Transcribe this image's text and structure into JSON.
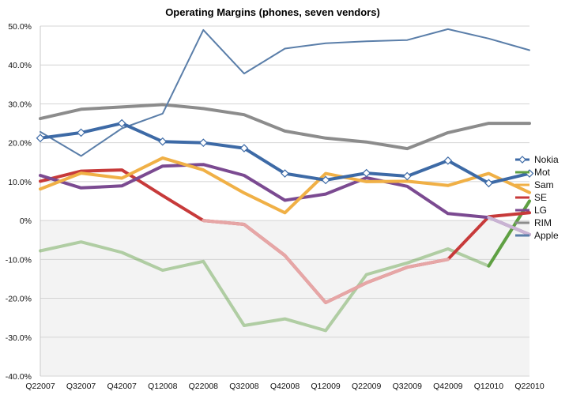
{
  "chart_data": {
    "type": "line",
    "title": "Operating Margins (phones, seven vendors)",
    "xlabel": "",
    "ylabel": "",
    "categories": [
      "Q22007",
      "Q32007",
      "Q42007",
      "Q12008",
      "Q22008",
      "Q32008",
      "Q42008",
      "Q12009",
      "Q22009",
      "Q32009",
      "Q42009",
      "Q12010",
      "Q22010"
    ],
    "ylim": [
      -40,
      50
    ],
    "yticks": [
      -40,
      -30,
      -20,
      -10,
      0,
      10,
      20,
      30,
      40,
      50
    ],
    "ytick_labels": [
      "-40.0%",
      "-30.0%",
      "-20.0%",
      "-10.0%",
      "0%",
      "10.0%",
      "20.0%",
      "30.0%",
      "40.0%",
      "50.0%"
    ],
    "grid": true,
    "negative_region_shaded": true,
    "legend_position": "right",
    "series": [
      {
        "name": "Nokia",
        "color": "#3d6aa6",
        "marker": "diamond",
        "values": [
          21.2,
          22.6,
          25.0,
          20.3,
          20.0,
          18.6,
          12.1,
          10.4,
          12.2,
          11.4,
          15.4,
          9.6,
          12.1
        ]
      },
      {
        "name": "Mot",
        "color": "#5fa043",
        "values": [
          -7.8,
          -5.5,
          -8.2,
          -12.8,
          -10.5,
          -27.0,
          -25.3,
          -28.3,
          -13.9,
          -10.9,
          -7.3,
          -11.7,
          5.0
        ]
      },
      {
        "name": "Sam",
        "color": "#f0b046",
        "values": [
          8.1,
          12.2,
          10.9,
          16.1,
          13.0,
          7.1,
          2.0,
          12.1,
          10.0,
          10.1,
          9.0,
          12.1,
          7.2
        ]
      },
      {
        "name": "SE",
        "color": "#c73a3a",
        "values": [
          10.1,
          12.7,
          13.0,
          6.4,
          0.0,
          -1.0,
          -9.0,
          -21.1,
          -16.0,
          -12.0,
          -10.0,
          1.0,
          2.0
        ]
      },
      {
        "name": "LG",
        "color": "#7b4a91",
        "values": [
          11.6,
          8.4,
          8.9,
          14.0,
          14.4,
          11.6,
          5.2,
          6.8,
          11.0,
          8.8,
          1.8,
          0.8,
          -3.6
        ]
      },
      {
        "name": "RIM",
        "color": "#8c8c8c",
        "values": [
          26.2,
          28.6,
          29.2,
          29.8,
          28.8,
          27.2,
          23.0,
          21.2,
          20.2,
          18.5,
          22.6,
          25.0,
          25.0
        ]
      },
      {
        "name": "Apple",
        "color": "#5a7ea9",
        "values": [
          22.8,
          16.6,
          23.7,
          27.5,
          49.0,
          37.8,
          44.2,
          45.6,
          46.1,
          46.4,
          49.2,
          46.8,
          43.8
        ]
      }
    ]
  }
}
